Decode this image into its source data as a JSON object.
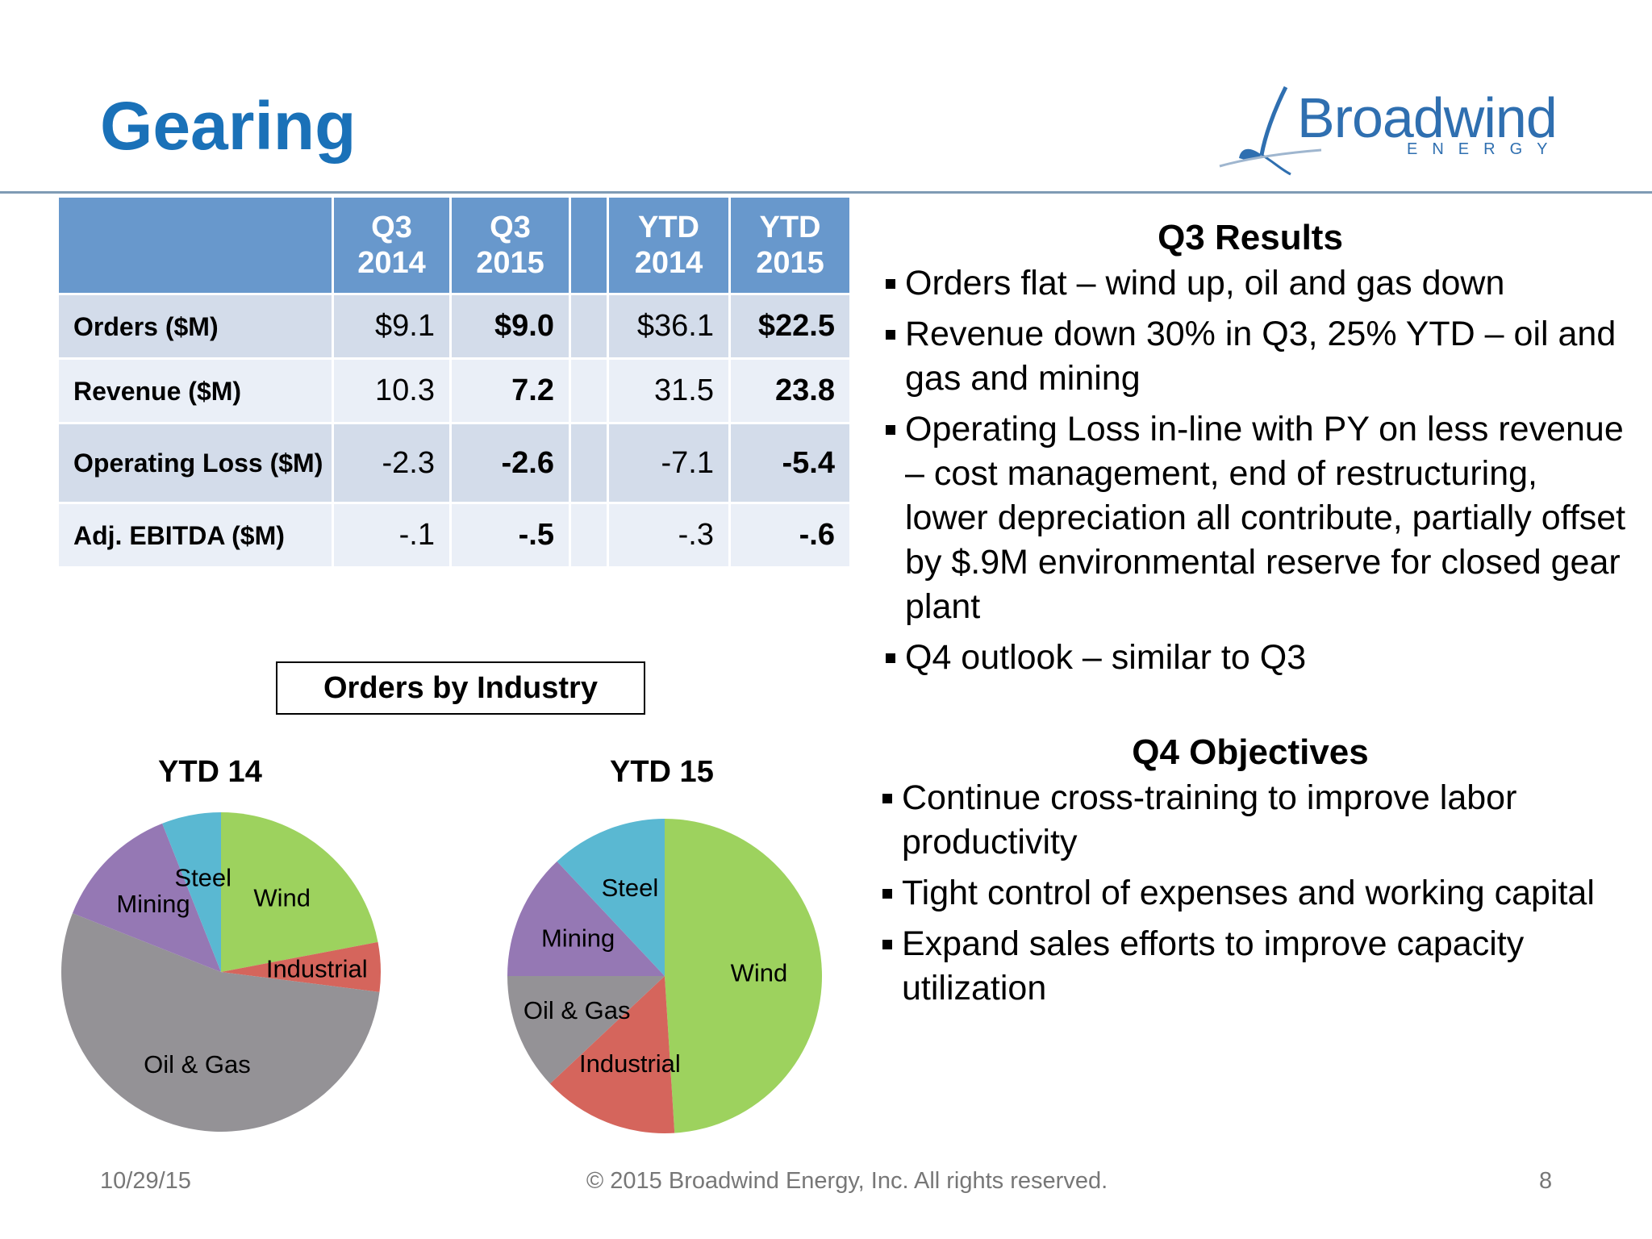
{
  "slide": {
    "title": "Gearing",
    "logo": {
      "name": "Broadwind",
      "sub": "ENERGY"
    }
  },
  "table": {
    "headers": [
      {
        "line1": "",
        "line2": ""
      },
      {
        "line1": "Q3",
        "line2": "2014"
      },
      {
        "line1": "Q3",
        "line2": "2015"
      },
      {
        "line1": "",
        "line2": ""
      },
      {
        "line1": "YTD",
        "line2": "2014"
      },
      {
        "line1": "YTD",
        "line2": "2015"
      }
    ],
    "rows": [
      {
        "label": "Orders ($M)",
        "q3_2014": "$9.1",
        "q3_2015": "$9.0",
        "ytd_2014": "$36.1",
        "ytd_2015": "$22.5"
      },
      {
        "label": "Revenue ($M)",
        "q3_2014": "10.3",
        "q3_2015": "7.2",
        "ytd_2014": "31.5",
        "ytd_2015": "23.8"
      },
      {
        "label": "Operating Loss ($M)",
        "q3_2014": "-2.3",
        "q3_2015": "-2.6",
        "ytd_2014": "-7.1",
        "ytd_2015": "-5.4"
      },
      {
        "label": "Adj. EBITDA ($M)",
        "q3_2014": "-.1",
        "q3_2015": "-.5",
        "ytd_2014": "-.3",
        "ytd_2015": "-.6"
      }
    ]
  },
  "orders_panel": {
    "title": "Orders by Industry"
  },
  "chart_data": [
    {
      "type": "pie",
      "title": "YTD 14",
      "slices": [
        {
          "label": "Wind",
          "value": 22,
          "color": "#9dd25e"
        },
        {
          "label": "Industrial",
          "value": 5,
          "color": "#d5655c"
        },
        {
          "label": "Oil & Gas",
          "value": 54,
          "color": "#949296"
        },
        {
          "label": "Mining",
          "value": 13,
          "color": "#9578b4"
        },
        {
          "label": "Steel",
          "value": 6,
          "color": "#5ab8d2"
        }
      ]
    },
    {
      "type": "pie",
      "title": "YTD 15",
      "slices": [
        {
          "label": "Wind",
          "value": 49,
          "color": "#9dd25e"
        },
        {
          "label": "Industrial",
          "value": 14,
          "color": "#d5655c"
        },
        {
          "label": "Oil & Gas",
          "value": 12,
          "color": "#949296"
        },
        {
          "label": "Mining",
          "value": 13,
          "color": "#9578b4"
        },
        {
          "label": "Steel",
          "value": 12,
          "color": "#5ab8d2"
        }
      ]
    }
  ],
  "q3_results": {
    "heading": "Q3 Results",
    "bullets": [
      "Orders flat – wind up, oil and gas down",
      "Revenue down 30% in Q3, 25% YTD – oil and gas and mining",
      "Operating Loss in-line with PY on less revenue – cost management, end of restructuring, lower depreciation all contribute, partially offset by $.9M environmental reserve for closed gear plant",
      "Q4 outlook – similar to Q3"
    ]
  },
  "q4_objectives": {
    "heading": "Q4 Objectives",
    "bullets": [
      "Continue cross-training to improve labor productivity",
      "Tight control of expenses and working capital",
      "Expand sales efforts to improve capacity utilization"
    ]
  },
  "footer": {
    "date": "10/29/15",
    "copyright": "© 2015 Broadwind Energy, Inc. All rights reserved.",
    "page": "8"
  }
}
